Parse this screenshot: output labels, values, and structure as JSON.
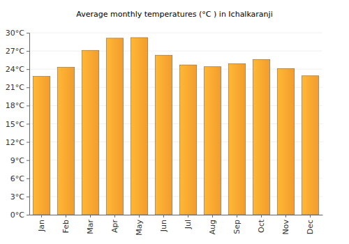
{
  "chart_data": {
    "type": "bar",
    "title": "Average monthly temperatures (°C ) in Ichalkaranji",
    "categories": [
      "Jan",
      "Feb",
      "Mar",
      "Apr",
      "May",
      "Jun",
      "Jul",
      "Aug",
      "Sep",
      "Oct",
      "Nov",
      "Dec"
    ],
    "values": [
      22.8,
      24.3,
      27.1,
      29.1,
      29.2,
      26.3,
      24.7,
      24.4,
      24.9,
      25.6,
      24.1,
      22.9
    ],
    "color": "#ffa530",
    "ylim": [
      0,
      30
    ],
    "yticks": [
      {
        "value": 0,
        "label": "0°C"
      },
      {
        "value": 3,
        "label": "3°C"
      },
      {
        "value": 6,
        "label": "6°C"
      },
      {
        "value": 9,
        "label": "9°C"
      },
      {
        "value": 12,
        "label": "12°C"
      },
      {
        "value": 15,
        "label": "15°C"
      },
      {
        "value": 18,
        "label": "18°C"
      },
      {
        "value": 21,
        "label": "21°C"
      },
      {
        "value": 24,
        "label": "24°C"
      },
      {
        "value": 27,
        "label": "27°C"
      },
      {
        "value": 30,
        "label": "30°C"
      }
    ],
    "grid": true
  }
}
